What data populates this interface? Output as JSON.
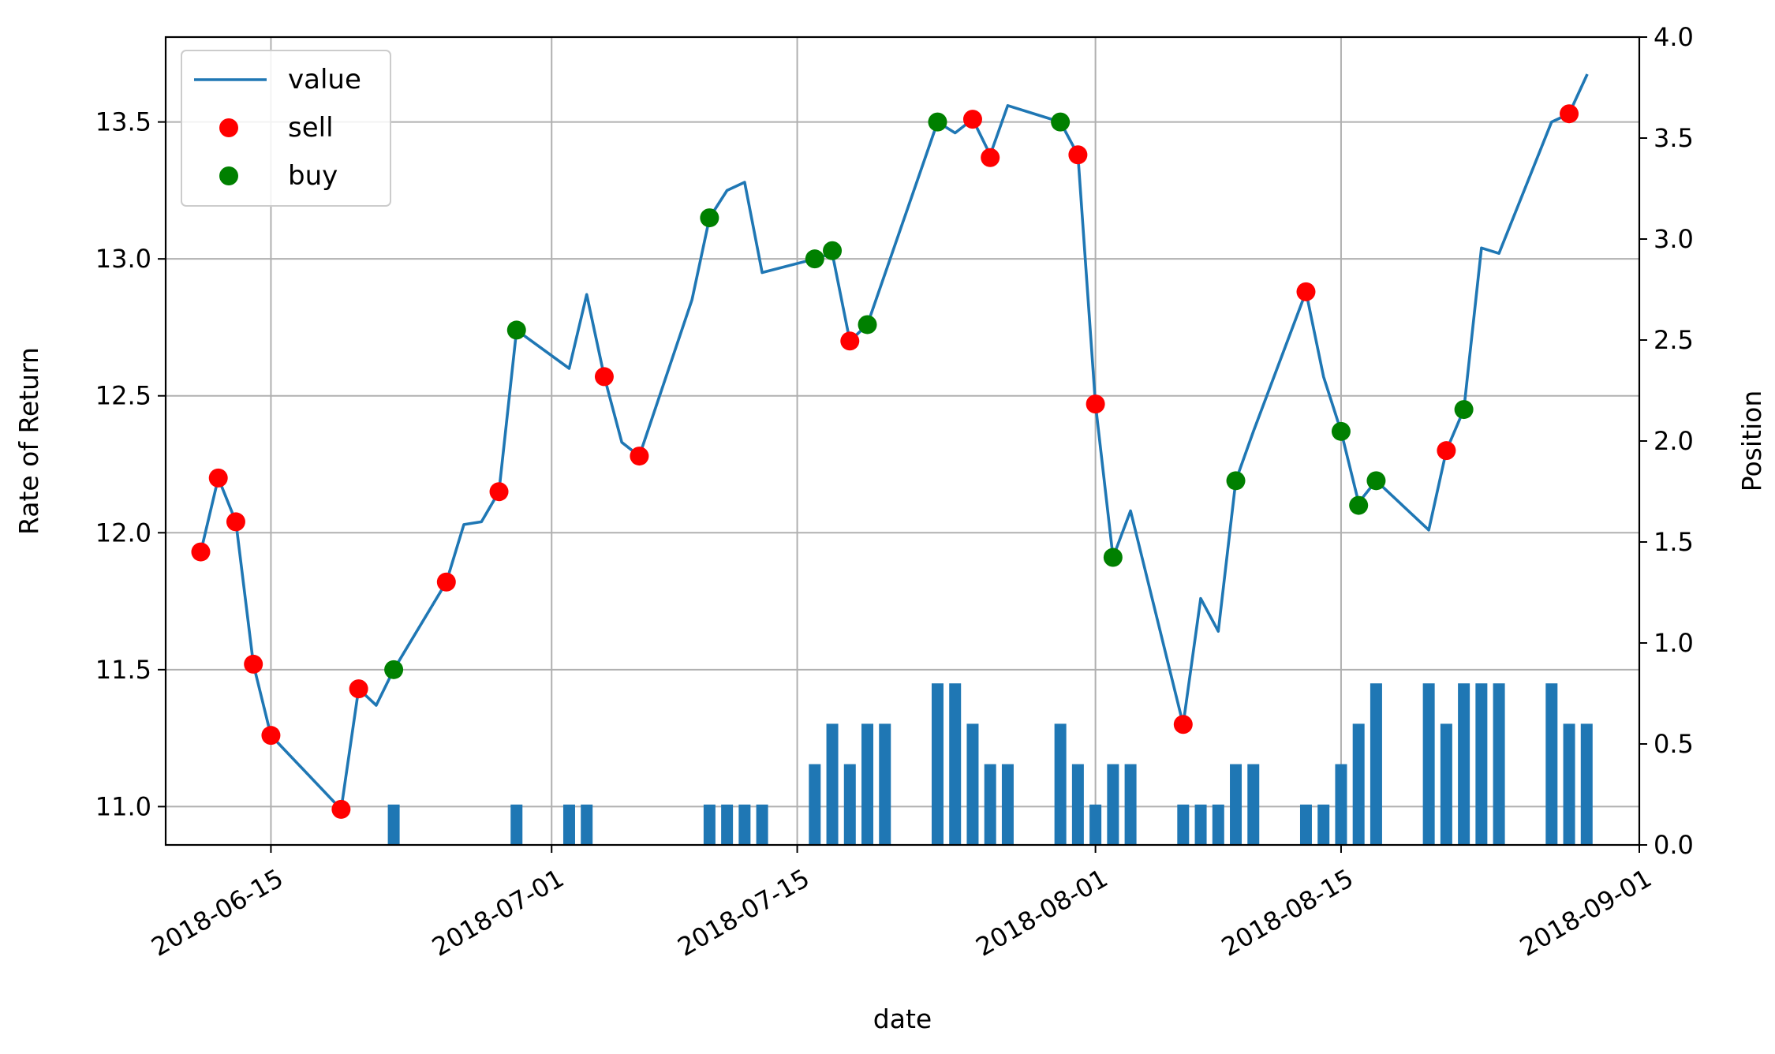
{
  "chart_data": {
    "type": "line",
    "xlabel": "date",
    "ylabel": "Rate of Return",
    "y2label": "Position",
    "ylim": [
      10.86,
      13.81
    ],
    "y2lim": [
      0.0,
      4.0
    ],
    "xlim": [
      "2018-06-09",
      "2018-09-01"
    ],
    "grid": true,
    "legend_position": "top-left",
    "colors": {
      "value": "#1f77b4",
      "sell": "#ff0000",
      "buy": "#008000",
      "position": "#1f77b4"
    },
    "x_ticks": [
      {
        "date": "2018-06-15",
        "label": "2018-06-15"
      },
      {
        "date": "2018-07-01",
        "label": "2018-07-01"
      },
      {
        "date": "2018-07-15",
        "label": "2018-07-15"
      },
      {
        "date": "2018-08-01",
        "label": "2018-08-01"
      },
      {
        "date": "2018-08-15",
        "label": "2018-08-15"
      },
      {
        "date": "2018-09-01",
        "label": "2018-09-01"
      }
    ],
    "y_ticks": [
      {
        "value": 11.0,
        "label": "11.0"
      },
      {
        "value": 11.5,
        "label": "11.5"
      },
      {
        "value": 12.0,
        "label": "12.0"
      },
      {
        "value": 12.5,
        "label": "12.5"
      },
      {
        "value": 13.0,
        "label": "13.0"
      },
      {
        "value": 13.5,
        "label": "13.5"
      }
    ],
    "y2_ticks": [
      {
        "value": 0.0,
        "label": "0.0"
      },
      {
        "value": 0.5,
        "label": "0.5"
      },
      {
        "value": 1.0,
        "label": "1.0"
      },
      {
        "value": 1.5,
        "label": "1.5"
      },
      {
        "value": 2.0,
        "label": "2.0"
      },
      {
        "value": 2.5,
        "label": "2.5"
      },
      {
        "value": 3.0,
        "label": "3.0"
      },
      {
        "value": 3.5,
        "label": "3.5"
      },
      {
        "value": 4.0,
        "label": "4.0"
      }
    ],
    "legend": [
      {
        "key": "value",
        "label": "value",
        "kind": "line"
      },
      {
        "key": "sell",
        "label": "sell",
        "kind": "dot"
      },
      {
        "key": "buy",
        "label": "buy",
        "kind": "dot"
      }
    ],
    "series": [
      {
        "name": "value",
        "kind": "line",
        "points": [
          [
            "2018-06-11",
            11.93
          ],
          [
            "2018-06-12",
            12.2
          ],
          [
            "2018-06-13",
            12.04
          ],
          [
            "2018-06-14",
            11.52
          ],
          [
            "2018-06-15",
            11.26
          ],
          [
            "2018-06-19",
            10.99
          ],
          [
            "2018-06-20",
            11.43
          ],
          [
            "2018-06-21",
            11.37
          ],
          [
            "2018-06-22",
            11.5
          ],
          [
            "2018-06-25",
            11.82
          ],
          [
            "2018-06-26",
            12.03
          ],
          [
            "2018-06-27",
            12.04
          ],
          [
            "2018-06-28",
            12.15
          ],
          [
            "2018-06-29",
            12.74
          ],
          [
            "2018-07-02",
            12.6
          ],
          [
            "2018-07-03",
            12.87
          ],
          [
            "2018-07-04",
            12.57
          ],
          [
            "2018-07-05",
            12.33
          ],
          [
            "2018-07-06",
            12.28
          ],
          [
            "2018-07-09",
            12.85
          ],
          [
            "2018-07-10",
            13.15
          ],
          [
            "2018-07-11",
            13.25
          ],
          [
            "2018-07-12",
            13.28
          ],
          [
            "2018-07-13",
            12.95
          ],
          [
            "2018-07-16",
            13.0
          ],
          [
            "2018-07-17",
            13.02
          ],
          [
            "2018-07-18",
            12.7
          ],
          [
            "2018-07-19",
            12.76
          ],
          [
            "2018-07-23",
            13.5
          ],
          [
            "2018-07-24",
            13.46
          ],
          [
            "2018-07-25",
            13.51
          ],
          [
            "2018-07-26",
            13.38
          ],
          [
            "2018-07-27",
            13.56
          ],
          [
            "2018-07-30",
            13.5
          ],
          [
            "2018-07-31",
            13.38
          ],
          [
            "2018-08-01",
            12.47
          ],
          [
            "2018-08-02",
            11.91
          ],
          [
            "2018-08-03",
            12.08
          ],
          [
            "2018-08-06",
            11.3
          ],
          [
            "2018-08-07",
            11.76
          ],
          [
            "2018-08-08",
            11.64
          ],
          [
            "2018-08-09",
            12.19
          ],
          [
            "2018-08-10",
            12.37
          ],
          [
            "2018-08-13",
            12.88
          ],
          [
            "2018-08-14",
            12.57
          ],
          [
            "2018-08-15",
            12.37
          ],
          [
            "2018-08-16",
            12.11
          ],
          [
            "2018-08-17",
            12.19
          ],
          [
            "2018-08-20",
            12.01
          ],
          [
            "2018-08-21",
            12.3
          ],
          [
            "2018-08-22",
            12.45
          ],
          [
            "2018-08-23",
            13.04
          ],
          [
            "2018-08-24",
            13.02
          ],
          [
            "2018-08-27",
            13.5
          ],
          [
            "2018-08-28",
            13.53
          ],
          [
            "2018-08-29",
            13.67
          ]
        ]
      },
      {
        "name": "sell",
        "kind": "scatter",
        "points": [
          [
            "2018-06-11",
            11.93
          ],
          [
            "2018-06-12",
            12.2
          ],
          [
            "2018-06-13",
            12.04
          ],
          [
            "2018-06-14",
            11.52
          ],
          [
            "2018-06-15",
            11.26
          ],
          [
            "2018-06-19",
            10.99
          ],
          [
            "2018-06-20",
            11.43
          ],
          [
            "2018-06-25",
            11.82
          ],
          [
            "2018-06-28",
            12.15
          ],
          [
            "2018-07-04",
            12.57
          ],
          [
            "2018-07-06",
            12.28
          ],
          [
            "2018-07-18",
            12.7
          ],
          [
            "2018-07-25",
            13.51
          ],
          [
            "2018-07-26",
            13.37
          ],
          [
            "2018-07-31",
            13.38
          ],
          [
            "2018-08-01",
            12.47
          ],
          [
            "2018-08-06",
            11.3
          ],
          [
            "2018-08-13",
            12.88
          ],
          [
            "2018-08-21",
            12.3
          ],
          [
            "2018-08-28",
            13.53
          ]
        ]
      },
      {
        "name": "buy",
        "kind": "scatter",
        "points": [
          [
            "2018-06-22",
            11.5
          ],
          [
            "2018-06-29",
            12.74
          ],
          [
            "2018-07-10",
            13.15
          ],
          [
            "2018-07-16",
            13.0
          ],
          [
            "2018-07-17",
            13.03
          ],
          [
            "2018-07-19",
            12.76
          ],
          [
            "2018-07-23",
            13.5
          ],
          [
            "2018-07-30",
            13.5
          ],
          [
            "2018-08-02",
            11.91
          ],
          [
            "2018-08-09",
            12.19
          ],
          [
            "2018-08-15",
            12.37
          ],
          [
            "2018-08-16",
            12.1
          ],
          [
            "2018-08-17",
            12.19
          ],
          [
            "2018-08-22",
            12.45
          ]
        ]
      },
      {
        "name": "position",
        "kind": "bar",
        "axis": "right",
        "points": [
          [
            "2018-06-22",
            0.2
          ],
          [
            "2018-06-29",
            0.2
          ],
          [
            "2018-07-02",
            0.2
          ],
          [
            "2018-07-03",
            0.2
          ],
          [
            "2018-07-10",
            0.2
          ],
          [
            "2018-07-11",
            0.2
          ],
          [
            "2018-07-12",
            0.2
          ],
          [
            "2018-07-13",
            0.2
          ],
          [
            "2018-07-16",
            0.4
          ],
          [
            "2018-07-17",
            0.6
          ],
          [
            "2018-07-18",
            0.4
          ],
          [
            "2018-07-19",
            0.6
          ],
          [
            "2018-07-20",
            0.6
          ],
          [
            "2018-07-23",
            0.8
          ],
          [
            "2018-07-24",
            0.8
          ],
          [
            "2018-07-25",
            0.6
          ],
          [
            "2018-07-26",
            0.4
          ],
          [
            "2018-07-27",
            0.4
          ],
          [
            "2018-07-30",
            0.6
          ],
          [
            "2018-07-31",
            0.4
          ],
          [
            "2018-08-01",
            0.2
          ],
          [
            "2018-08-02",
            0.4
          ],
          [
            "2018-08-03",
            0.4
          ],
          [
            "2018-08-06",
            0.2
          ],
          [
            "2018-08-07",
            0.2
          ],
          [
            "2018-08-08",
            0.2
          ],
          [
            "2018-08-09",
            0.4
          ],
          [
            "2018-08-10",
            0.4
          ],
          [
            "2018-08-13",
            0.2
          ],
          [
            "2018-08-14",
            0.2
          ],
          [
            "2018-08-15",
            0.4
          ],
          [
            "2018-08-16",
            0.6
          ],
          [
            "2018-08-17",
            0.8
          ],
          [
            "2018-08-20",
            0.8
          ],
          [
            "2018-08-21",
            0.6
          ],
          [
            "2018-08-22",
            0.8
          ],
          [
            "2018-08-23",
            0.8
          ],
          [
            "2018-08-24",
            0.8
          ],
          [
            "2018-08-27",
            0.8
          ],
          [
            "2018-08-28",
            0.6
          ],
          [
            "2018-08-29",
            0.6
          ]
        ]
      }
    ]
  }
}
